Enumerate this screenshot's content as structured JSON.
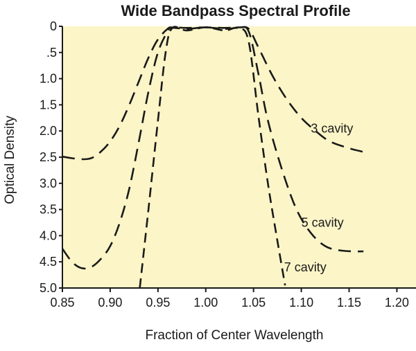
{
  "chart_data": {
    "type": "line",
    "title": "Wide Bandpass Spectral Profile",
    "xlabel": "Fraction of Center Wavelength",
    "ylabel": "Optical Density",
    "xlim": [
      0.85,
      1.22
    ],
    "ylim": [
      0,
      5.0
    ],
    "y_inverted": true,
    "grid": false,
    "legend": "none",
    "x_ticks": [
      "0.85",
      "0.90",
      "0.95",
      "1.00",
      "1.05",
      "1.10",
      "1.15",
      "1.20"
    ],
    "y_ticks": [
      "0",
      ".5",
      "1.0",
      "1.5",
      "2.0",
      "2.5",
      "3.0",
      "3.5",
      "4.0",
      "4.5",
      "5.0"
    ],
    "series": [
      {
        "name": "3 cavity",
        "x": [
          0.85,
          0.86,
          0.87,
          0.88,
          0.89,
          0.9,
          0.91,
          0.92,
          0.93,
          0.94,
          0.95,
          0.96,
          0.965,
          0.98,
          1.0,
          1.02,
          1.035,
          1.045,
          1.055,
          1.07,
          1.085,
          1.1,
          1.115,
          1.13,
          1.15,
          1.165
        ],
        "y": [
          2.49,
          2.52,
          2.54,
          2.52,
          2.4,
          2.2,
          1.9,
          1.5,
          1.05,
          0.6,
          0.25,
          0.05,
          0.02,
          0.03,
          0.02,
          0.03,
          0.02,
          0.05,
          0.4,
          0.95,
          1.4,
          1.75,
          2.0,
          2.2,
          2.33,
          2.4
        ]
      },
      {
        "name": "5 cavity",
        "x": [
          0.85,
          0.86,
          0.87,
          0.88,
          0.89,
          0.9,
          0.91,
          0.92,
          0.93,
          0.94,
          0.95,
          0.96,
          0.965,
          0.98,
          1.0,
          1.02,
          1.035,
          1.045,
          1.055,
          1.065,
          1.08,
          1.095,
          1.11,
          1.125,
          1.14,
          1.155,
          1.165
        ],
        "y": [
          4.25,
          4.5,
          4.62,
          4.6,
          4.45,
          4.2,
          3.75,
          3.1,
          2.2,
          1.25,
          0.5,
          0.1,
          0.03,
          0.05,
          0.02,
          0.05,
          0.03,
          0.1,
          0.9,
          1.8,
          2.75,
          3.5,
          3.95,
          4.2,
          4.28,
          4.3,
          4.3
        ]
      },
      {
        "name": "7 cavity",
        "x": [
          0.931,
          0.94,
          0.95,
          0.958,
          0.965,
          0.98,
          1.0,
          1.02,
          1.035,
          1.045,
          1.055,
          1.065,
          1.075,
          1.083
        ],
        "y": [
          5.0,
          3.5,
          1.8,
          0.5,
          0.03,
          0.08,
          0.02,
          0.08,
          0.03,
          0.3,
          1.7,
          3.0,
          4.1,
          4.95
        ]
      }
    ],
    "annotations": [
      {
        "text": "3 cavity",
        "x": 1.11,
        "y": 1.95
      },
      {
        "text": "5 cavity",
        "x": 1.1,
        "y": 3.75
      },
      {
        "text": "7 cavity",
        "x": 1.082,
        "y": 4.6
      }
    ],
    "colors": {
      "plot_background": "#fbf5c7",
      "line": "#1a1a1a",
      "axis": "#1a1a1a"
    }
  }
}
